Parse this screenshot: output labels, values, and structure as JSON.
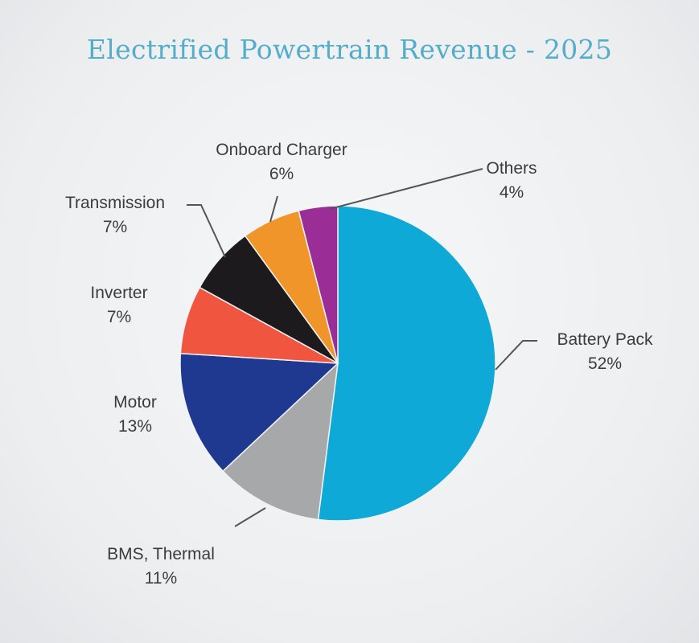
{
  "chart_data": {
    "type": "pie",
    "title": "Electrified Powertrain Revenue - 2025",
    "slices": [
      {
        "name": "Battery Pack",
        "value": 52,
        "label": "52%",
        "color": "#0ea9d6"
      },
      {
        "name": "BMS, Thermal",
        "value": 11,
        "label": "11%",
        "color": "#a6a8aa"
      },
      {
        "name": "Motor",
        "value": 13,
        "label": "13%",
        "color": "#1f3990"
      },
      {
        "name": "Inverter",
        "value": 7,
        "label": "7%",
        "color": "#f0553f"
      },
      {
        "name": "Transmission",
        "value": 7,
        "label": "7%",
        "color": "#1c1a1d"
      },
      {
        "name": "Onboard Charger",
        "value": 6,
        "label": "6%",
        "color": "#f0952a"
      },
      {
        "name": "Others",
        "value": 4,
        "label": "4%",
        "color": "#9b2d97"
      }
    ]
  }
}
